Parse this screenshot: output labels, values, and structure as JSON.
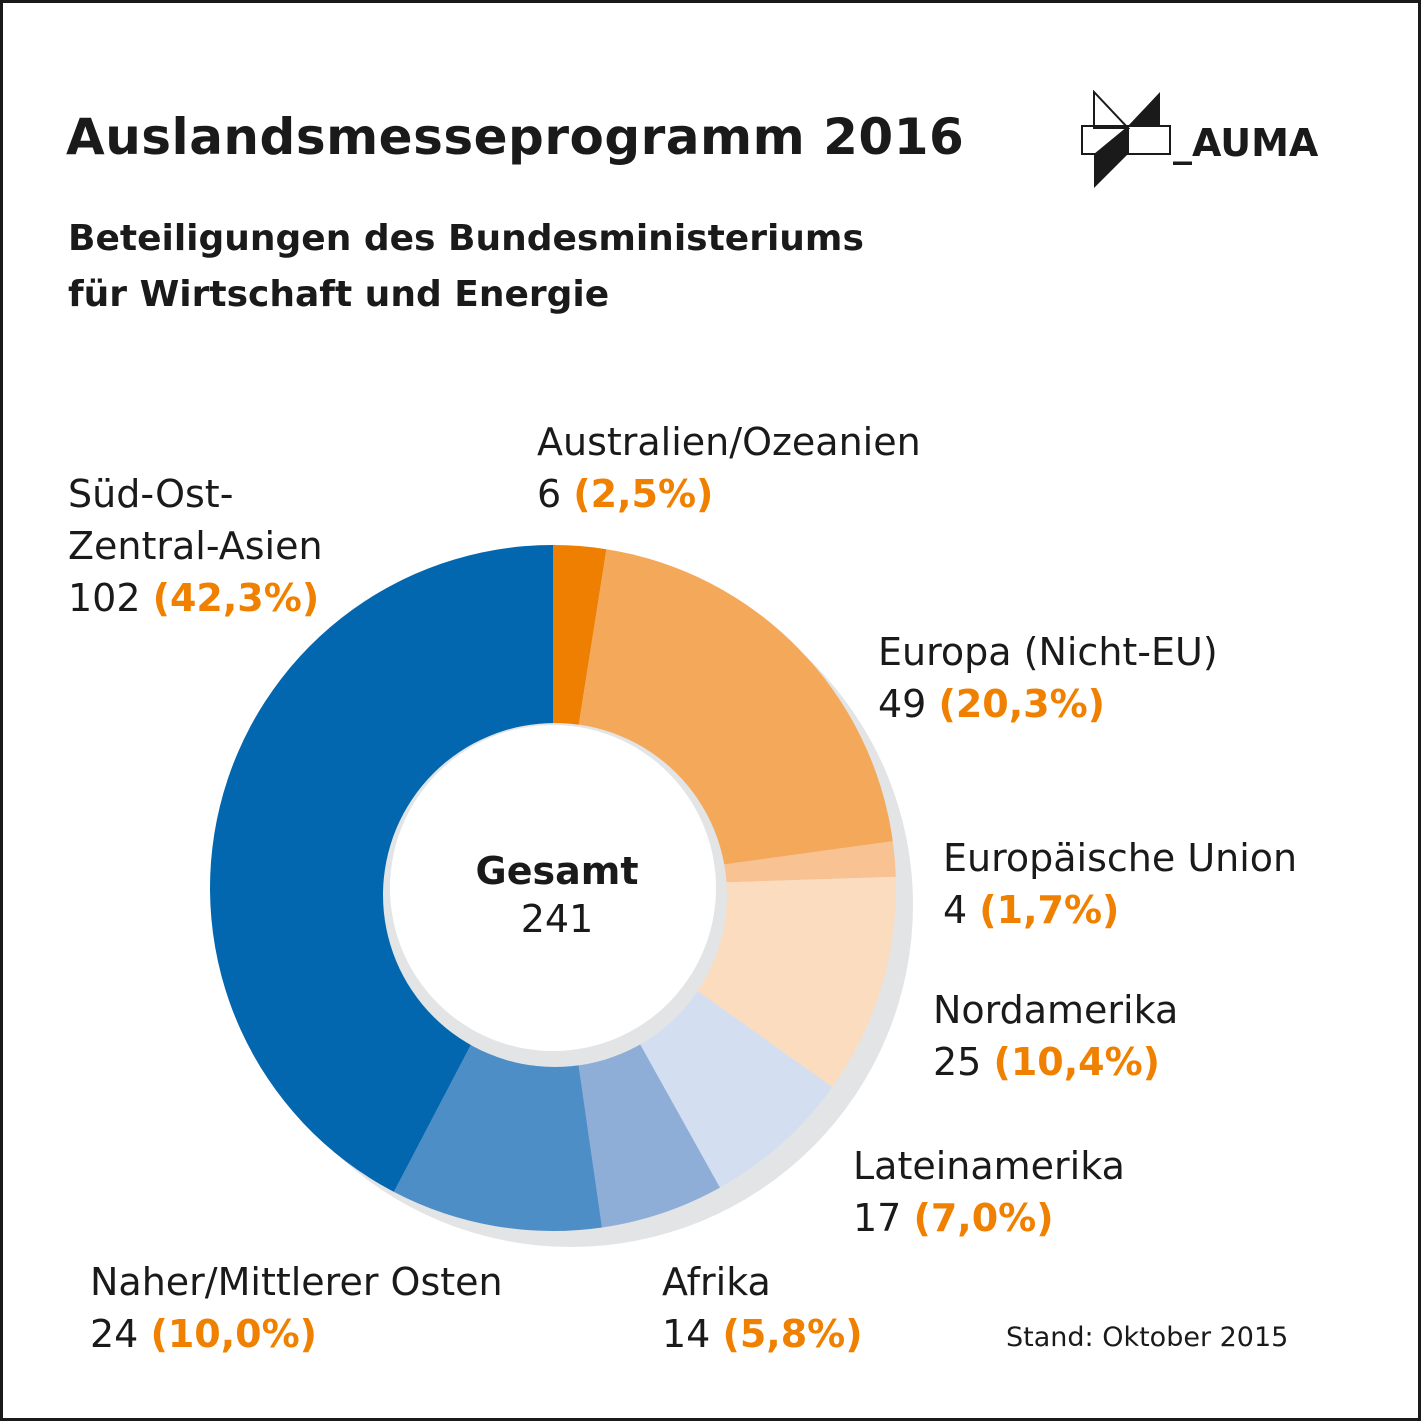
{
  "title": "Auslandsmesseprogramm 2016",
  "subtitle_line1": "Beteiligungen des Bundesministeriums",
  "subtitle_line2": "für Wirtschaft und Energie",
  "logo_text": "_AUMA",
  "stand": "Stand: Oktober 2015",
  "center": {
    "label": "Gesamt",
    "value": "241"
  },
  "colors": {
    "orange_dark": "#ee7f00",
    "orange_mid": "#f4a95a",
    "orange_light": "#f8c293",
    "orange_pale": "#fbdcbe",
    "blue_pale": "#d3dff0",
    "blue_light": "#8eaed8",
    "blue_mid": "#4d8ec7",
    "blue_dark": "#0367b0",
    "shadow": "#e3e4e6",
    "pct_text": "#f08000"
  },
  "labels": {
    "australien": {
      "name": "Australien/Ozeanien",
      "count": "6",
      "pct": "(2,5%)"
    },
    "europa_nicht_eu": {
      "name": "Europa (Nicht-EU)",
      "count": "49",
      "pct": "(20,3%)"
    },
    "eu": {
      "name": "Europäische Union",
      "count": "4",
      "pct": "(1,7%)"
    },
    "nordamerika": {
      "name": "Nordamerika",
      "count": "25",
      "pct": "(10,4%)"
    },
    "lateinamerika": {
      "name": "Lateinamerika",
      "count": "17",
      "pct": "(7,0%)"
    },
    "afrika": {
      "name": "Afrika",
      "count": "14",
      "pct": "(5,8%)"
    },
    "naher_osten": {
      "name": "Naher/Mittlerer Osten",
      "count": "24",
      "pct": "(10,0%)"
    },
    "asien": {
      "name_line1": "Süd-Ost-",
      "name_line2": "Zentral-Asien",
      "count": "102",
      "pct": "(42,3%)"
    }
  },
  "chart_data": {
    "type": "pie",
    "title": "Auslandsmesseprogramm 2016",
    "total": 241,
    "slices": [
      {
        "name": "Australien/Ozeanien",
        "value": 6,
        "percent": 2.5,
        "color": "#ee7f00"
      },
      {
        "name": "Europa (Nicht-EU)",
        "value": 49,
        "percent": 20.3,
        "color": "#f4a95a"
      },
      {
        "name": "Europäische Union",
        "value": 4,
        "percent": 1.7,
        "color": "#f8c293"
      },
      {
        "name": "Nordamerika",
        "value": 25,
        "percent": 10.4,
        "color": "#fbdcbe"
      },
      {
        "name": "Lateinamerika",
        "value": 17,
        "percent": 7.0,
        "color": "#d3dff0"
      },
      {
        "name": "Afrika",
        "value": 14,
        "percent": 5.8,
        "color": "#8eaed8"
      },
      {
        "name": "Naher/Mittlerer Osten",
        "value": 24,
        "percent": 10.0,
        "color": "#4d8ec7"
      },
      {
        "name": "Süd-Ost-Zentral-Asien",
        "value": 102,
        "percent": 42.3,
        "color": "#0367b0"
      }
    ]
  }
}
